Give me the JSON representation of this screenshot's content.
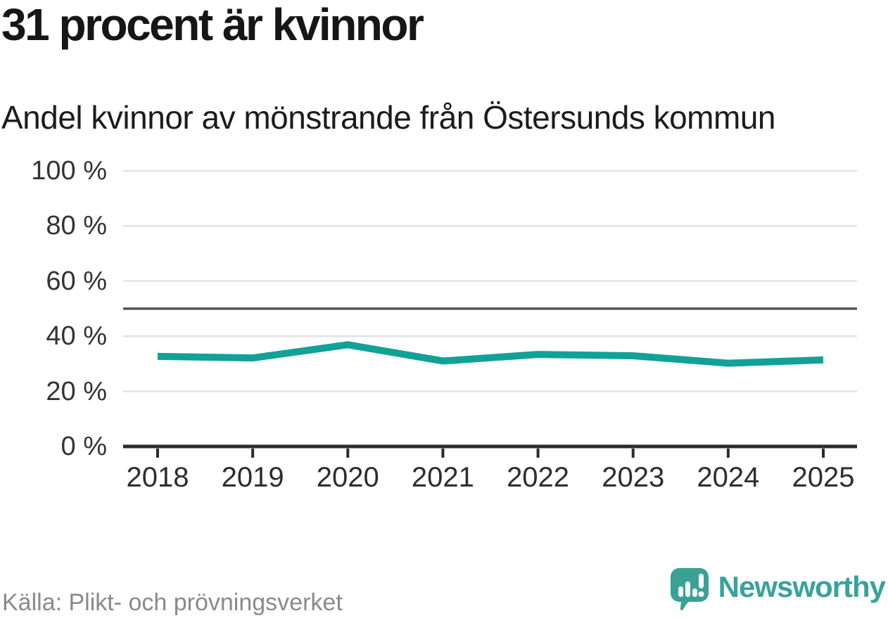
{
  "page": {
    "background": "#ffffff"
  },
  "header": {
    "title": "31 procent är kvinnor",
    "subtitle": "Andel kvinnor av mönstrande från Östersunds kommun"
  },
  "chart_data": {
    "type": "line",
    "title": "31 procent är kvinnor",
    "subtitle": "Andel kvinnor av mönstrande från Östersunds kommun",
    "x": [
      "2018",
      "2019",
      "2020",
      "2021",
      "2022",
      "2023",
      "2024",
      "2025"
    ],
    "series": [
      {
        "name": "Andel kvinnor av mönstrande",
        "color": "#11a197",
        "values": [
          32.7,
          32.1,
          36.9,
          31.0,
          33.4,
          32.9,
          30.2,
          31.4
        ]
      }
    ],
    "xlabel": "",
    "ylabel": "",
    "ylim": [
      0,
      100
    ],
    "y_ticks": [
      0,
      20,
      40,
      60,
      80,
      100
    ],
    "y_tick_labels": [
      "0 %",
      "20 %",
      "40 %",
      "60 %",
      "80 %",
      "100 %"
    ],
    "reference_line": 50,
    "grid": true,
    "legend": "none"
  },
  "footer": {
    "source": "Källa: Plikt- och prövningsverket",
    "brand": "Newsworthy"
  },
  "colors": {
    "line": "#11a197",
    "grid": "#e3e3e3",
    "reference_line": "#555555",
    "axis": "#2b2b2b",
    "tick_text": "#333333",
    "title_text": "#161616",
    "muted_text": "#8a8a8a",
    "brand_teal": "#3aa294",
    "wordmark_teal": "#38a39b"
  }
}
